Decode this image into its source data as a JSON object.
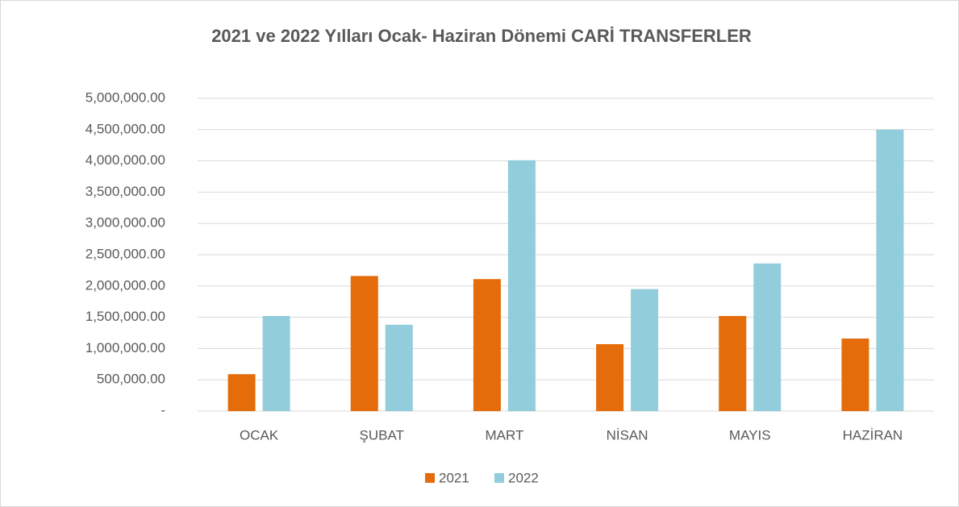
{
  "chart_data": {
    "type": "bar",
    "title": "2021 ve 2022 Yılları Ocak- Haziran Dönemi CARİ TRANSFERLER",
    "categories": [
      "OCAK",
      "ŞUBAT",
      "MART",
      "NİSAN",
      "MAYIS",
      "HAZİRAN"
    ],
    "series": [
      {
        "name": "2021",
        "color": "#e46c0a",
        "values": [
          590000,
          2160000,
          2110000,
          1070000,
          1520000,
          1160000
        ]
      },
      {
        "name": "2022",
        "color": "#92cddc",
        "values": [
          1520000,
          1380000,
          4010000,
          1950000,
          2360000,
          4500000
        ]
      }
    ],
    "ylim": [
      0,
      5000000
    ],
    "yticks": [
      {
        "value": 0,
        "label": "-"
      },
      {
        "value": 500000,
        "label": "500,000.00"
      },
      {
        "value": 1000000,
        "label": "1,000,000.00"
      },
      {
        "value": 1500000,
        "label": "1,500,000.00"
      },
      {
        "value": 2000000,
        "label": "2,000,000.00"
      },
      {
        "value": 2500000,
        "label": "2,500,000.00"
      },
      {
        "value": 3000000,
        "label": "3,000,000.00"
      },
      {
        "value": 3500000,
        "label": "3,500,000.00"
      },
      {
        "value": 4000000,
        "label": "4,000,000.00"
      },
      {
        "value": 4500000,
        "label": "4,500,000.00"
      },
      {
        "value": 5000000,
        "label": "5,000,000.00"
      }
    ],
    "grid": true,
    "legend": "bottom"
  }
}
